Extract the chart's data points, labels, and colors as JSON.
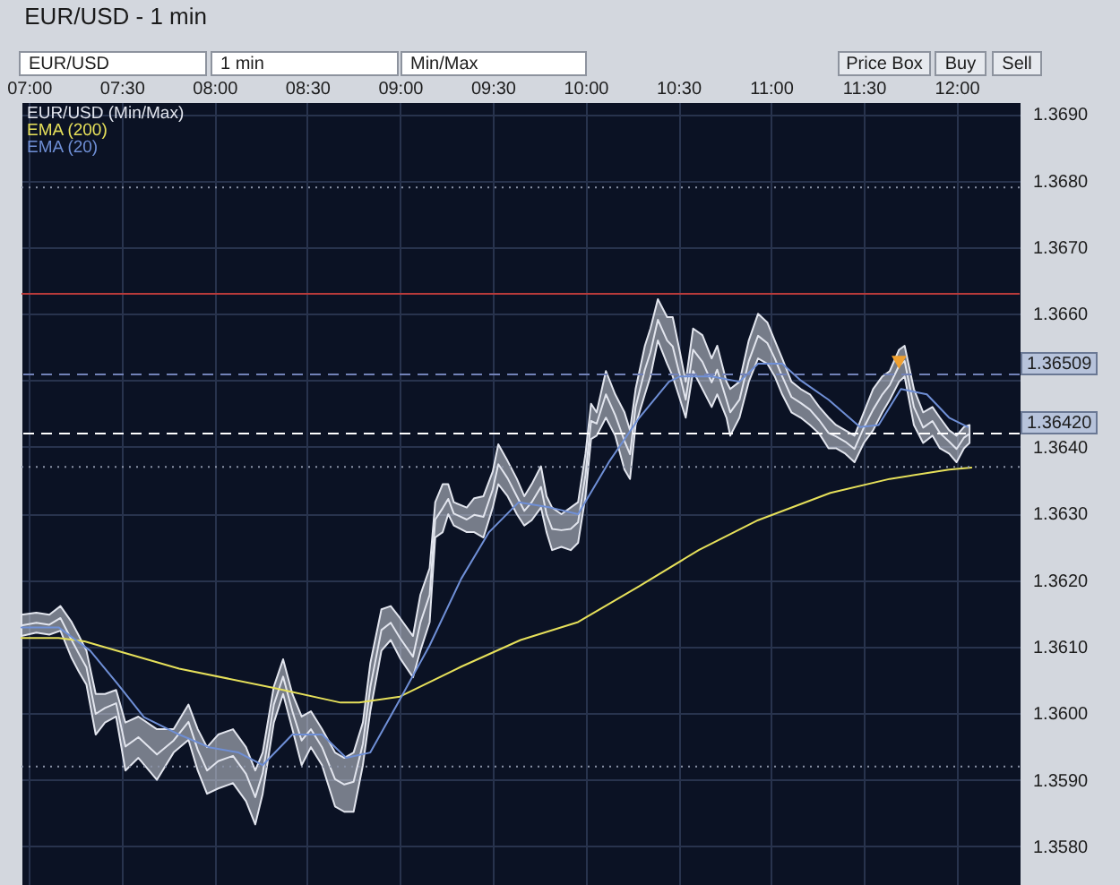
{
  "chart_data": {
    "type": "line",
    "title": "EUR/USD - 1 min",
    "annotations": [
      "EUR/USD",
      "1 min",
      "Min/Max",
      "Price Box",
      "Buy",
      "Sell"
    ],
    "x": [
      6.96,
      7.04,
      7.11,
      7.17,
      7.23,
      7.27,
      7.31,
      7.36,
      7.41,
      7.47,
      7.52,
      7.59,
      7.69,
      7.78,
      7.86,
      7.91,
      7.96,
      8.02,
      8.1,
      8.17,
      8.22,
      8.26,
      8.32,
      8.37,
      8.42,
      8.47,
      8.52,
      8.58,
      8.65,
      8.7,
      8.75,
      8.8,
      8.84,
      8.9,
      8.95,
      9.0,
      9.07,
      9.11,
      9.16,
      9.19,
      9.23,
      9.26,
      9.29,
      9.36,
      9.4,
      9.45,
      9.5,
      9.53,
      9.58,
      9.63,
      9.67,
      9.71,
      9.76,
      9.79,
      9.82,
      9.87,
      9.92,
      9.96,
      10.0,
      10.03,
      10.06,
      10.11,
      10.16,
      10.21,
      10.24,
      10.27,
      10.32,
      10.35,
      10.39,
      10.44,
      10.47,
      10.51,
      10.54,
      10.58,
      10.63,
      10.68,
      10.71,
      10.76,
      10.78,
      10.83,
      10.88,
      10.93,
      10.98,
      11.02,
      11.06,
      11.11,
      11.16,
      11.21,
      11.26,
      11.31,
      11.35,
      11.4,
      11.45,
      11.5,
      11.55,
      11.6,
      11.64,
      11.69,
      11.72,
      11.77,
      11.82,
      11.87,
      11.91,
      11.96,
      12.0,
      12.04,
      12.07
    ],
    "series": [
      {
        "name": "EUR/USD (Min/Max)",
        "color": "#e2e5ee",
        "values": [
          1.36132,
          1.36136,
          1.36133,
          1.36143,
          1.3611,
          1.36089,
          1.36069,
          1.35999,
          1.36008,
          1.36015,
          1.3595,
          1.35964,
          1.35938,
          1.35959,
          1.35987,
          1.35945,
          1.35914,
          1.35928,
          1.35936,
          1.35909,
          1.35874,
          1.3591,
          1.36013,
          1.36055,
          1.36003,
          1.35959,
          1.35976,
          1.35949,
          1.35901,
          1.35893,
          1.35897,
          1.35954,
          1.36039,
          1.36125,
          1.36136,
          1.36113,
          1.36085,
          1.36136,
          1.36178,
          1.36291,
          1.36308,
          1.36322,
          1.363,
          1.36291,
          1.36298,
          1.36295,
          1.36336,
          1.36374,
          1.36353,
          1.36326,
          1.36304,
          1.36317,
          1.3634,
          1.36299,
          1.36277,
          1.36275,
          1.36277,
          1.36287,
          1.36358,
          1.36439,
          1.36435,
          1.36479,
          1.36448,
          1.36409,
          1.36389,
          1.3646,
          1.36516,
          1.36542,
          1.36591,
          1.3656,
          1.36551,
          1.36506,
          1.36471,
          1.36546,
          1.36528,
          1.36497,
          1.36516,
          1.36471,
          1.36452,
          1.36471,
          1.36529,
          1.36567,
          1.36556,
          1.36533,
          1.36506,
          1.36475,
          1.36466,
          1.36456,
          1.3644,
          1.36421,
          1.36416,
          1.36408,
          1.36397,
          1.36429,
          1.36456,
          1.36479,
          1.36493,
          1.36522,
          1.36529,
          1.3646,
          1.36429,
          1.36439,
          1.36421,
          1.36408,
          1.36397,
          1.36414,
          1.3642
        ],
        "lower": [
          1.36116,
          1.36121,
          1.36118,
          1.36124,
          1.36083,
          1.36062,
          1.36043,
          1.35968,
          1.35986,
          1.35995,
          1.35914,
          1.35933,
          1.359,
          1.35941,
          1.3596,
          1.35914,
          1.35879,
          1.35887,
          1.35895,
          1.35868,
          1.35833,
          1.35879,
          1.35986,
          1.36029,
          1.35976,
          1.35922,
          1.35949,
          1.35922,
          1.3586,
          1.35852,
          1.35852,
          1.35922,
          1.36003,
          1.36094,
          1.3611,
          1.36083,
          1.36054,
          1.36094,
          1.36137,
          1.36264,
          1.36272,
          1.36299,
          1.36282,
          1.36272,
          1.36272,
          1.36264,
          1.36309,
          1.36344,
          1.36326,
          1.36299,
          1.36282,
          1.3629,
          1.36309,
          1.36272,
          1.36245,
          1.3625,
          1.36245,
          1.36256,
          1.36326,
          1.36412,
          1.36417,
          1.36444,
          1.36417,
          1.36366,
          1.36352,
          1.36433,
          1.36479,
          1.36506,
          1.3656,
          1.36525,
          1.36506,
          1.36471,
          1.36444,
          1.36514,
          1.36487,
          1.3646,
          1.36479,
          1.36444,
          1.36417,
          1.36444,
          1.36498,
          1.36533,
          1.36525,
          1.36506,
          1.36479,
          1.36452,
          1.36444,
          1.36433,
          1.3642,
          1.36398,
          1.36398,
          1.3639,
          1.36377,
          1.36406,
          1.36425,
          1.36452,
          1.36471,
          1.36498,
          1.36506,
          1.36433,
          1.36406,
          1.36417,
          1.36398,
          1.3639,
          1.36377,
          1.36398,
          1.36406
        ],
        "upper": [
          1.36148,
          1.36151,
          1.36148,
          1.36161,
          1.36137,
          1.36116,
          1.36094,
          1.36029,
          1.36029,
          1.36035,
          1.35986,
          1.35995,
          1.35976,
          1.35976,
          1.36013,
          1.35976,
          1.35949,
          1.35968,
          1.35976,
          1.35949,
          1.35914,
          1.35941,
          1.3604,
          1.36081,
          1.36029,
          1.35995,
          1.36003,
          1.35976,
          1.35941,
          1.35933,
          1.35941,
          1.35986,
          1.36075,
          1.36156,
          1.36161,
          1.36143,
          1.36116,
          1.36178,
          1.36218,
          1.36317,
          1.36344,
          1.36344,
          1.36317,
          1.36309,
          1.36323,
          1.36326,
          1.36363,
          1.36404,
          1.36379,
          1.36352,
          1.36326,
          1.36344,
          1.36371,
          1.36326,
          1.36309,
          1.36299,
          1.36309,
          1.36317,
          1.3639,
          1.36465,
          1.36452,
          1.36514,
          1.36479,
          1.36452,
          1.36425,
          1.36487,
          1.36552,
          1.36578,
          1.36622,
          1.36595,
          1.36595,
          1.36541,
          1.36498,
          1.36578,
          1.36568,
          1.36533,
          1.36552,
          1.36498,
          1.36487,
          1.36498,
          1.3656,
          1.366,
          1.36587,
          1.3656,
          1.36533,
          1.36498,
          1.36487,
          1.36479,
          1.3646,
          1.36444,
          1.36433,
          1.36425,
          1.36417,
          1.36452,
          1.36487,
          1.36506,
          1.36514,
          1.36546,
          1.36552,
          1.36487,
          1.36452,
          1.3646,
          1.36444,
          1.36425,
          1.36417,
          1.3643,
          1.36433
        ]
      },
      {
        "name": "EMA (200)",
        "color": "#e6e05a",
        "x": [
          6.96,
          7.16,
          7.3,
          7.81,
          8.32,
          8.68,
          8.78,
          9.0,
          9.33,
          9.65,
          9.96,
          10.29,
          10.61,
          10.93,
          11.32,
          11.64,
          11.96,
          12.08
        ],
        "values": [
          1.36113,
          1.36113,
          1.36108,
          1.36067,
          1.36038,
          1.36016,
          1.36016,
          1.36025,
          1.3607,
          1.3611,
          1.36137,
          1.36191,
          1.36245,
          1.3629,
          1.36331,
          1.36352,
          1.36366,
          1.36369
        ]
      },
      {
        "name": "EMA (20)",
        "color": "#6f8fd6",
        "x": [
          6.96,
          7.16,
          7.33,
          7.49,
          7.62,
          7.81,
          7.97,
          8.13,
          8.26,
          8.42,
          8.58,
          8.71,
          8.84,
          9.0,
          9.16,
          9.33,
          9.48,
          9.64,
          9.81,
          9.96,
          10.13,
          10.29,
          10.45,
          10.51,
          10.68,
          10.83,
          10.93,
          11.06,
          11.16,
          11.31,
          11.48,
          11.58,
          11.7,
          11.84,
          11.96,
          12.06
        ],
        "values": [
          1.36129,
          1.36129,
          1.36094,
          1.3604,
          1.35994,
          1.35968,
          1.35949,
          1.35941,
          1.35922,
          1.35968,
          1.35968,
          1.35933,
          1.35941,
          1.36021,
          1.36102,
          1.36202,
          1.36272,
          1.36317,
          1.36309,
          1.36299,
          1.36379,
          1.36444,
          1.36498,
          1.36506,
          1.36506,
          1.36498,
          1.36525,
          1.36525,
          1.365,
          1.36471,
          1.3643,
          1.36433,
          1.36487,
          1.36479,
          1.36444,
          1.3643
        ]
      },
      {
        "type": "scatter",
        "color": "#f0a030",
        "marker": "triangle",
        "x": [
          11.69
        ],
        "values": [
          1.36527
        ]
      }
    ],
    "xlim": [
      6.96,
      12.34
    ],
    "xticks": [
      {
        "value": 7,
        "label": "07:00"
      },
      {
        "value": 7.5,
        "label": "07:30"
      },
      {
        "value": 8,
        "label": "08:00"
      },
      {
        "value": 8.5,
        "label": "08:30"
      },
      {
        "value": 9,
        "label": "09:00"
      },
      {
        "value": 9.5,
        "label": "09:30"
      },
      {
        "value": 10,
        "label": "10:00"
      },
      {
        "value": 10.5,
        "label": "10:30"
      },
      {
        "value": 11,
        "label": "11:00"
      },
      {
        "value": 11.5,
        "label": "11:30"
      },
      {
        "value": 12,
        "label": "12:00"
      }
    ],
    "ylim": [
      1.35742,
      1.36918
    ],
    "yticks": [
      {
        "value": 1.358,
        "label": "1.3580"
      },
      {
        "value": 1.359,
        "label": "1.3590"
      },
      {
        "value": 1.36,
        "label": "1.3600"
      },
      {
        "value": 1.361,
        "label": "1.3610"
      },
      {
        "value": 1.362,
        "label": "1.3620"
      },
      {
        "value": 1.363,
        "label": "1.3630"
      },
      {
        "value": 1.364,
        "label": "1.3640"
      },
      {
        "value": 1.365,
        "label": null
      },
      {
        "value": 1.366,
        "label": "1.3660"
      },
      {
        "value": 1.367,
        "label": "1.3670"
      },
      {
        "value": 1.368,
        "label": "1.3680"
      },
      {
        "value": 1.369,
        "label": "1.3690"
      }
    ],
    "ref_lines": [
      {
        "axis": "y",
        "value": 1.3679,
        "color": "#8a92a6",
        "line_style": "dotted"
      },
      {
        "axis": "y",
        "value": 1.3663,
        "color": "#b83a3a",
        "line_style": "solid"
      },
      {
        "axis": "y",
        "value": 1.36509,
        "label": "1.36509",
        "color": "#7282b8",
        "line_style": "dashed"
      },
      {
        "axis": "y",
        "value": 1.3642,
        "label": "1.36420",
        "color": "#ffffff",
        "line_style": "dashed"
      },
      {
        "axis": "y",
        "value": 1.3637,
        "color": "#8a92a6",
        "line_style": "dotted"
      },
      {
        "axis": "y",
        "value": 1.3592,
        "color": "#8a92a6",
        "line_style": "dotted"
      }
    ],
    "grid": true,
    "legend": "top left"
  }
}
